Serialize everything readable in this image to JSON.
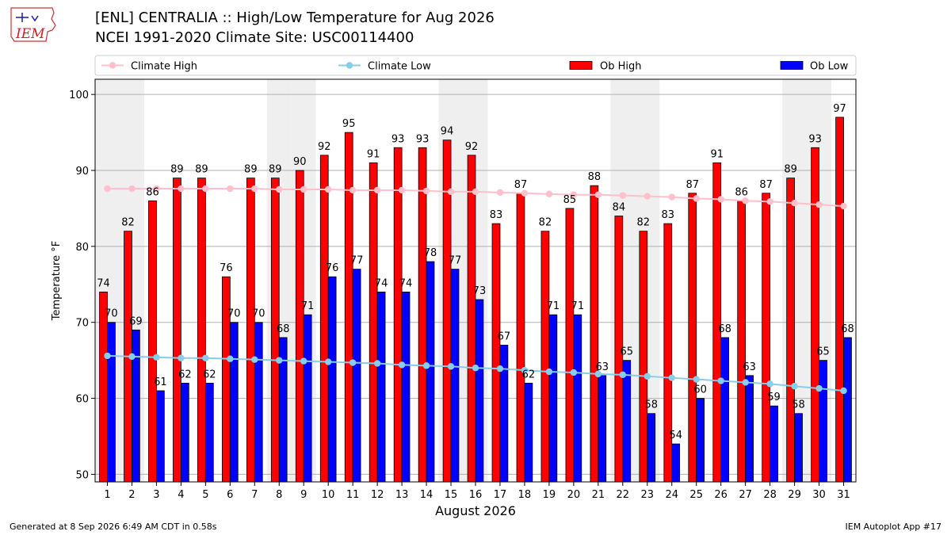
{
  "header": {
    "title": "[ENL] CENTRALIA :: High/Low Temperature for Aug 2026",
    "subtitle": "NCEI 1991-2020 Climate Site: USC00114400",
    "logo_text": "IEM"
  },
  "footer": {
    "generated": "Generated at 8 Sep 2026 6:49 AM CDT in 0.58s",
    "app": "IEM Autoplot App #17"
  },
  "colors": {
    "ob_high": "#ff0000",
    "ob_low": "#0000ff",
    "climate_high": "#ffc0cb",
    "climate_low": "#87ceeb",
    "weekend_band": "#efefef"
  },
  "chart_data": {
    "type": "bar",
    "xlabel": "August 2026",
    "ylabel": "Temperature °F",
    "ylim": [
      49,
      102
    ],
    "yticks": [
      50,
      60,
      70,
      80,
      90,
      100
    ],
    "grid": true,
    "legend_position": "top",
    "categories": [
      "1",
      "2",
      "3",
      "4",
      "5",
      "6",
      "7",
      "8",
      "9",
      "10",
      "11",
      "12",
      "13",
      "14",
      "15",
      "16",
      "17",
      "18",
      "19",
      "20",
      "21",
      "22",
      "23",
      "24",
      "25",
      "26",
      "27",
      "28",
      "29",
      "30",
      "31"
    ],
    "shaded_days": [
      1,
      2,
      8,
      9,
      15,
      16,
      22,
      23,
      29,
      30
    ],
    "series": [
      {
        "name": "Ob High",
        "kind": "bar",
        "values": [
          74,
          82,
          86,
          89,
          89,
          76,
          89,
          89,
          90,
          92,
          95,
          91,
          93,
          93,
          94,
          92,
          83,
          87,
          82,
          85,
          88,
          84,
          82,
          83,
          87,
          91,
          86,
          87,
          89,
          93,
          97
        ]
      },
      {
        "name": "Ob Low",
        "kind": "bar",
        "values": [
          70,
          69,
          61,
          62,
          62,
          70,
          70,
          68,
          71,
          76,
          77,
          74,
          74,
          78,
          77,
          73,
          67,
          62,
          71,
          71,
          63,
          65,
          58,
          54,
          60,
          68,
          63,
          59,
          58,
          65,
          68
        ]
      },
      {
        "name": "Climate High",
        "kind": "line",
        "values": [
          87.6,
          87.6,
          87.6,
          87.6,
          87.6,
          87.6,
          87.6,
          87.5,
          87.5,
          87.5,
          87.4,
          87.4,
          87.4,
          87.3,
          87.2,
          87.2,
          87.1,
          87.0,
          86.9,
          86.8,
          86.8,
          86.7,
          86.6,
          86.5,
          86.3,
          86.2,
          86.0,
          85.9,
          85.7,
          85.5,
          85.3
        ]
      },
      {
        "name": "Climate Low",
        "kind": "line",
        "values": [
          65.6,
          65.5,
          65.4,
          65.3,
          65.3,
          65.2,
          65.1,
          65.0,
          64.9,
          64.8,
          64.7,
          64.6,
          64.4,
          64.3,
          64.2,
          64.0,
          63.9,
          63.7,
          63.5,
          63.4,
          63.2,
          63.1,
          62.9,
          62.7,
          62.5,
          62.3,
          62.1,
          61.9,
          61.6,
          61.3,
          61.0
        ]
      }
    ]
  }
}
